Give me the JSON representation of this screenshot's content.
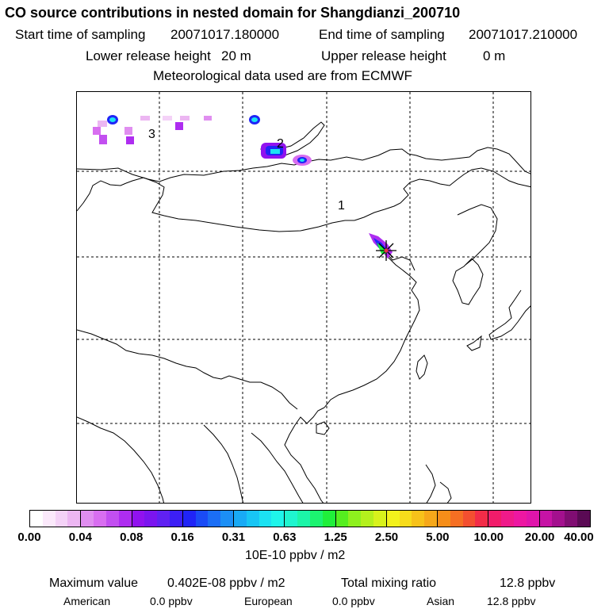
{
  "title": "CO  source contributions in nested domain for Shangdianzi_200710",
  "sampling": {
    "start_label": "Start time of sampling",
    "start_value": "20071017.180000",
    "end_label": "End time of sampling",
    "end_value": "20071017.210000"
  },
  "release": {
    "lower_label": "Lower release height",
    "lower_value": "20 m",
    "upper_label": "Upper release height",
    "upper_value": "0 m"
  },
  "met_note": "Meteorological data used are from ECMWF",
  "map": {
    "region_labels": [
      "1",
      "2",
      "3"
    ],
    "receptor": "Shangdianzi",
    "colors": {
      "border": "#000000",
      "grid": "#000000"
    }
  },
  "colorbar": {
    "ticks": [
      "0.00",
      "0.04",
      "0.08",
      "0.16",
      "0.31",
      "0.63",
      "1.25",
      "2.50",
      "5.00",
      "10.00",
      "20.00",
      "40.00"
    ],
    "colors": [
      "#ffffff",
      "#fbe9fb",
      "#f4d2f7",
      "#ecb6f2",
      "#e08ef0",
      "#d86ef0",
      "#c24ff0",
      "#ae2df0",
      "#9112ef",
      "#7b15ef",
      "#6021f2",
      "#3c1ff5",
      "#2024f7",
      "#1a4bf6",
      "#1b6ef5",
      "#1c8ff5",
      "#19aaf5",
      "#18c5f4",
      "#1ce2f2",
      "#1ff5ea",
      "#1ff5cf",
      "#1cf5a8",
      "#1cf370",
      "#20ef3a",
      "#55ee1f",
      "#8ef01e",
      "#b4f01d",
      "#d8f21c",
      "#f3f21c",
      "#f7dc1b",
      "#f7c21a",
      "#f6a81a",
      "#f68e19",
      "#f56f23",
      "#f34f30",
      "#f22c48",
      "#f11c6a",
      "#ef1a8a",
      "#ed17a2",
      "#e015ab",
      "#c613a5",
      "#a3108e",
      "#800d72",
      "#5a0a54"
    ],
    "unit": "10E-10 ppbv / m2"
  },
  "stats": {
    "max_label": "Maximum value",
    "max_value": "0.402E-08 ppbv / m2",
    "total_label": "Total mixing ratio",
    "total_value": "12.8 ppbv",
    "american_label": "American",
    "american_value": "0.0 ppbv",
    "european_label": "European",
    "european_value": "0.0 ppbv",
    "asian_label": "Asian",
    "asian_value": "12.8 ppbv"
  }
}
